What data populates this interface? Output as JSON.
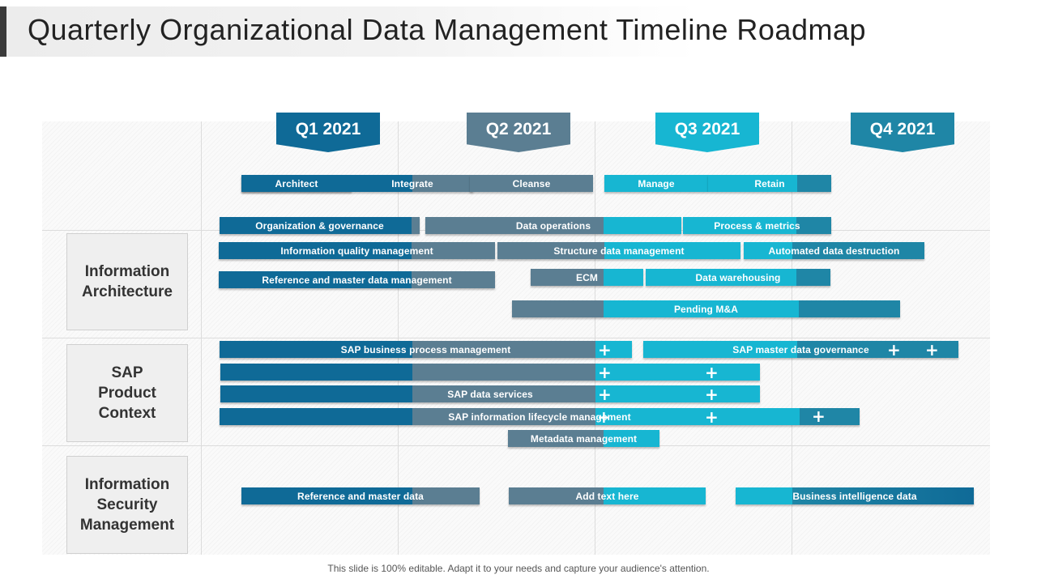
{
  "title": "Quarterly Organizational Data Management Timeline Roadmap",
  "footer": "This slide is 100% editable. Adapt it to your needs and capture your audience's attention.",
  "colors": {
    "dark_blue": "#0f6a97",
    "slate": "#5b7e92",
    "cyan": "#17b6d2",
    "teal": "#1f86a6"
  },
  "quarters": [
    "Q1 2021",
    "Q2 2021",
    "Q3 2021",
    "Q4 2021"
  ],
  "categories": [
    "Information\nArchitecture",
    "SAP\nProduct\nContext",
    "Information\nSecurity\nManagement"
  ],
  "bars": {
    "architect": "Architect",
    "integrate": "Integrate",
    "cleanse": "Cleanse",
    "manage": "Manage",
    "retain": "Retain",
    "org_governance": "Organization & governance",
    "data_operations": "Data operations",
    "process_metrics": "Process & metrics",
    "info_quality": "Information quality management",
    "structure_data": "Structure data management",
    "automated_destruction": "Automated data destruction",
    "ref_master_mgmt": "Reference and master data management",
    "ecm": "ECM",
    "data_warehousing": "Data warehousing",
    "pending_ma": "Pending M&A",
    "sap_bpm": "SAP business process management",
    "sap_master_gov": "SAP master data governance",
    "sap_data_services": "SAP data services",
    "sap_lifecycle": "SAP information lifecycle management",
    "metadata_mgmt": "Metadata management",
    "ref_master_data": "Reference and master data",
    "add_text": "Add text here",
    "business_intel": "Business intelligence data"
  }
}
